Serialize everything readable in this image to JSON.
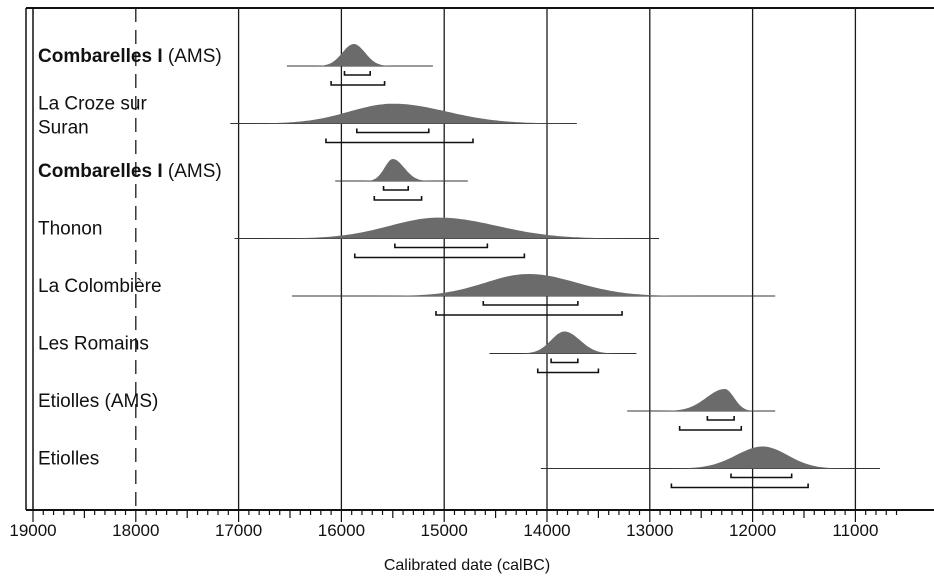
{
  "chart_data": {
    "type": "range",
    "title": "",
    "xlabel": "Calibrated date (calBC)",
    "ylabel": "",
    "x_reversed": true,
    "xlim": [
      19000,
      10600
    ],
    "x_ticks": [
      19000,
      18000,
      17000,
      16000,
      15000,
      14000,
      13000,
      12000,
      11000
    ],
    "gridlines": [
      18000,
      17000,
      16000,
      15000,
      14000,
      13000,
      12000,
      11000
    ],
    "grid": true,
    "legend": "none",
    "colors": {
      "fill": "#6b6b6b",
      "line": "#333333",
      "grid": "#1a1a1a"
    },
    "samples": [
      {
        "label": "Combarelles I",
        "label_suffix": " (AMS)",
        "bold": true,
        "range": [
          16530,
          15110
        ],
        "peak": 15880,
        "sd_left": 110,
        "sd_right": 110,
        "height": 1.0,
        "sigma1": [
          15970,
          15720
        ],
        "sigma2": [
          16100,
          15580
        ]
      },
      {
        "label": "La Croze sur",
        "label2": "Suran",
        "label_suffix": "",
        "bold": false,
        "range": [
          17080,
          13710
        ],
        "peak": 15500,
        "sd_left": 420,
        "sd_right": 520,
        "height": 0.9,
        "sigma1": [
          15850,
          15150
        ],
        "sigma2": [
          16150,
          14720
        ]
      },
      {
        "label": "Combarelles I",
        "label_suffix": " (AMS)",
        "bold": true,
        "range": [
          16060,
          14770
        ],
        "peak": 15500,
        "sd_left": 80,
        "sd_right": 110,
        "height": 1.0,
        "sigma1": [
          15590,
          15350
        ],
        "sigma2": [
          15680,
          15220
        ]
      },
      {
        "label": "Thonon",
        "label_suffix": "",
        "bold": false,
        "range": [
          17040,
          12910
        ],
        "peak": 15050,
        "sd_left": 480,
        "sd_right": 560,
        "height": 0.95,
        "sigma1": [
          15480,
          14580
        ],
        "sigma2": [
          15870,
          14220
        ]
      },
      {
        "label": "La Colombière",
        "label_suffix": "",
        "bold": false,
        "range": [
          16480,
          11780
        ],
        "peak": 14180,
        "sd_left": 420,
        "sd_right": 470,
        "height": 1.0,
        "sigma1": [
          14620,
          13700
        ],
        "sigma2": [
          15080,
          13270
        ]
      },
      {
        "label": "Les Romains",
        "label_suffix": "",
        "bold": false,
        "range": [
          14560,
          13130
        ],
        "peak": 13830,
        "sd_left": 130,
        "sd_right": 150,
        "height": 1.0,
        "sigma1": [
          13960,
          13700
        ],
        "sigma2": [
          14090,
          13500
        ]
      },
      {
        "label": "Etiolles (AMS)",
        "label_suffix": "",
        "bold": false,
        "range": [
          13220,
          11780
        ],
        "peak": 12270,
        "sd_left": 180,
        "sd_right": 90,
        "height": 1.0,
        "sigma1": [
          12440,
          12180
        ],
        "sigma2": [
          12710,
          12110
        ]
      },
      {
        "label": "Etiolles",
        "label_suffix": "",
        "bold": false,
        "range": [
          14060,
          10760
        ],
        "peak": 11900,
        "sd_left": 260,
        "sd_right": 240,
        "height": 1.0,
        "sigma1": [
          12210,
          11620
        ],
        "sigma2": [
          12790,
          11460
        ]
      }
    ]
  }
}
